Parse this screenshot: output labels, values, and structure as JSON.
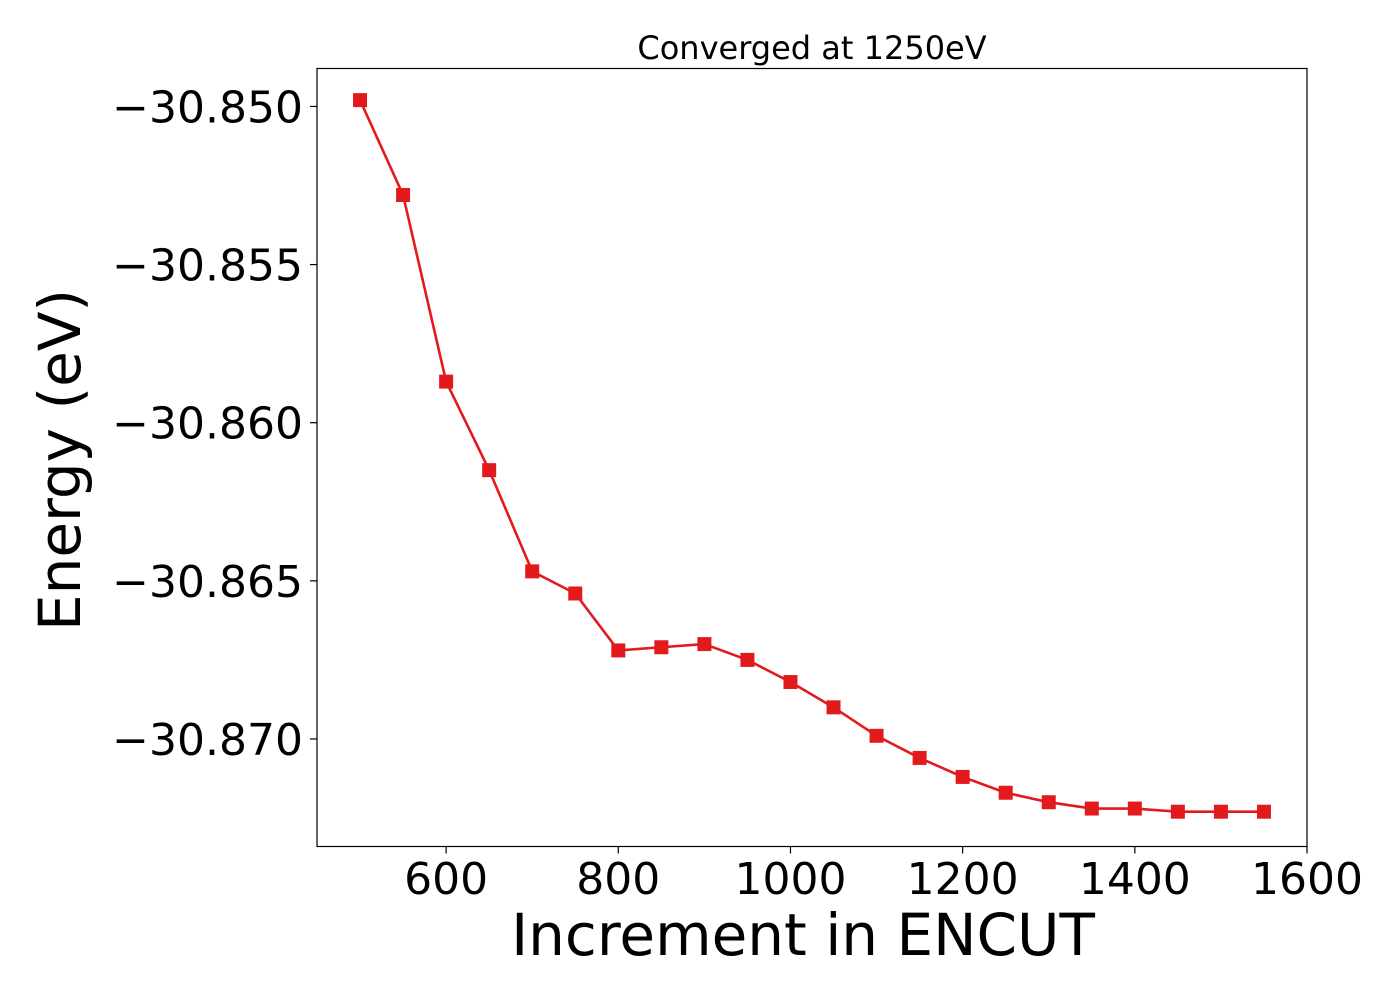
{
  "chart_data": {
    "type": "line",
    "title": "Converged at 1250eV",
    "xlabel": "Increment in ENCUT",
    "ylabel": "Energy (eV)",
    "xlim": [
      450,
      1600
    ],
    "ylim": [
      -30.8734,
      -30.8488
    ],
    "xticks": [
      600,
      800,
      1000,
      1200,
      1400,
      1600
    ],
    "xtick_labels": [
      "600",
      "800",
      "1000",
      "1200",
      "1400",
      "1600"
    ],
    "yticks": [
      -30.85,
      -30.855,
      -30.86,
      -30.865,
      -30.87
    ],
    "ytick_labels": [
      "−30.850",
      "−30.855",
      "−30.860",
      "−30.865",
      "−30.870"
    ],
    "grid": false,
    "marker": "square",
    "series": [
      {
        "color": "#e31a1c",
        "x": [
          500,
          550,
          600,
          650,
          700,
          750,
          800,
          850,
          900,
          950,
          1000,
          1050,
          1100,
          1150,
          1200,
          1250,
          1300,
          1350,
          1400,
          1450,
          1500,
          1550
        ],
        "y": [
          -30.8498,
          -30.8528,
          -30.8587,
          -30.8615,
          -30.8647,
          -30.8654,
          -30.8672,
          -30.8671,
          -30.867,
          -30.8675,
          -30.8682,
          -30.869,
          -30.8699,
          -30.8706,
          -30.8712,
          -30.8717,
          -30.872,
          -30.8722,
          -30.8722,
          -30.8723,
          -30.8723,
          -30.8723
        ]
      }
    ]
  }
}
